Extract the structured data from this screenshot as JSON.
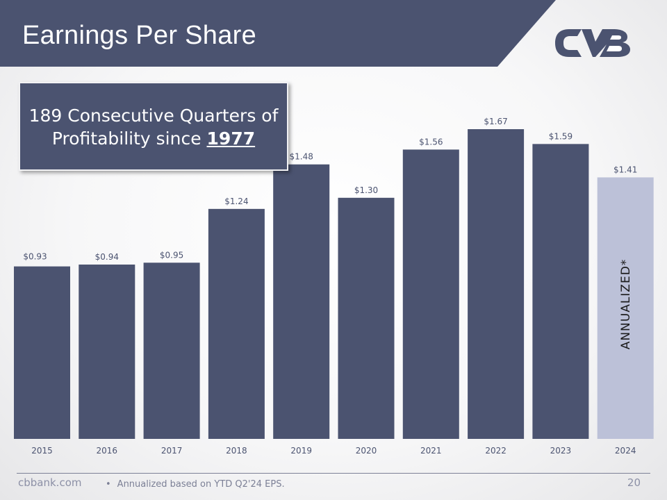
{
  "slide": {
    "title": "Earnings Per Share",
    "callout_line1": "189 Consecutive Quarters of",
    "callout_line2_prefix": "Profitability since ",
    "callout_year": "1977",
    "annualized_label": "ANNUALIZED*",
    "footer_site": "cbbank.com",
    "footer_bullet": "•",
    "footer_note": "Annualized based on YTD Q2'24 EPS.",
    "page_number": "20"
  },
  "colors": {
    "banner": "#4b5370",
    "bar": "#4b5370",
    "bar_highlight": "#bcc1d8",
    "label": "#4b5370"
  },
  "icons": {
    "logo": "cvb-logo-icon"
  },
  "chart_data": {
    "type": "bar",
    "title": "Earnings Per Share",
    "categories": [
      "2015",
      "2016",
      "2017",
      "2018",
      "2019",
      "2020",
      "2021",
      "2022",
      "2023",
      "2024"
    ],
    "values": [
      0.93,
      0.94,
      0.95,
      1.24,
      1.48,
      1.3,
      1.56,
      1.67,
      1.59,
      1.41
    ],
    "data_labels": [
      "$0.93",
      "$0.94",
      "$0.95",
      "$1.24",
      "$1.48",
      "$1.30",
      "$1.56",
      "$1.67",
      "$1.59",
      "$1.41"
    ],
    "highlight_category": "2024",
    "ylim": [
      0,
      1.72
    ],
    "grid": false
  }
}
